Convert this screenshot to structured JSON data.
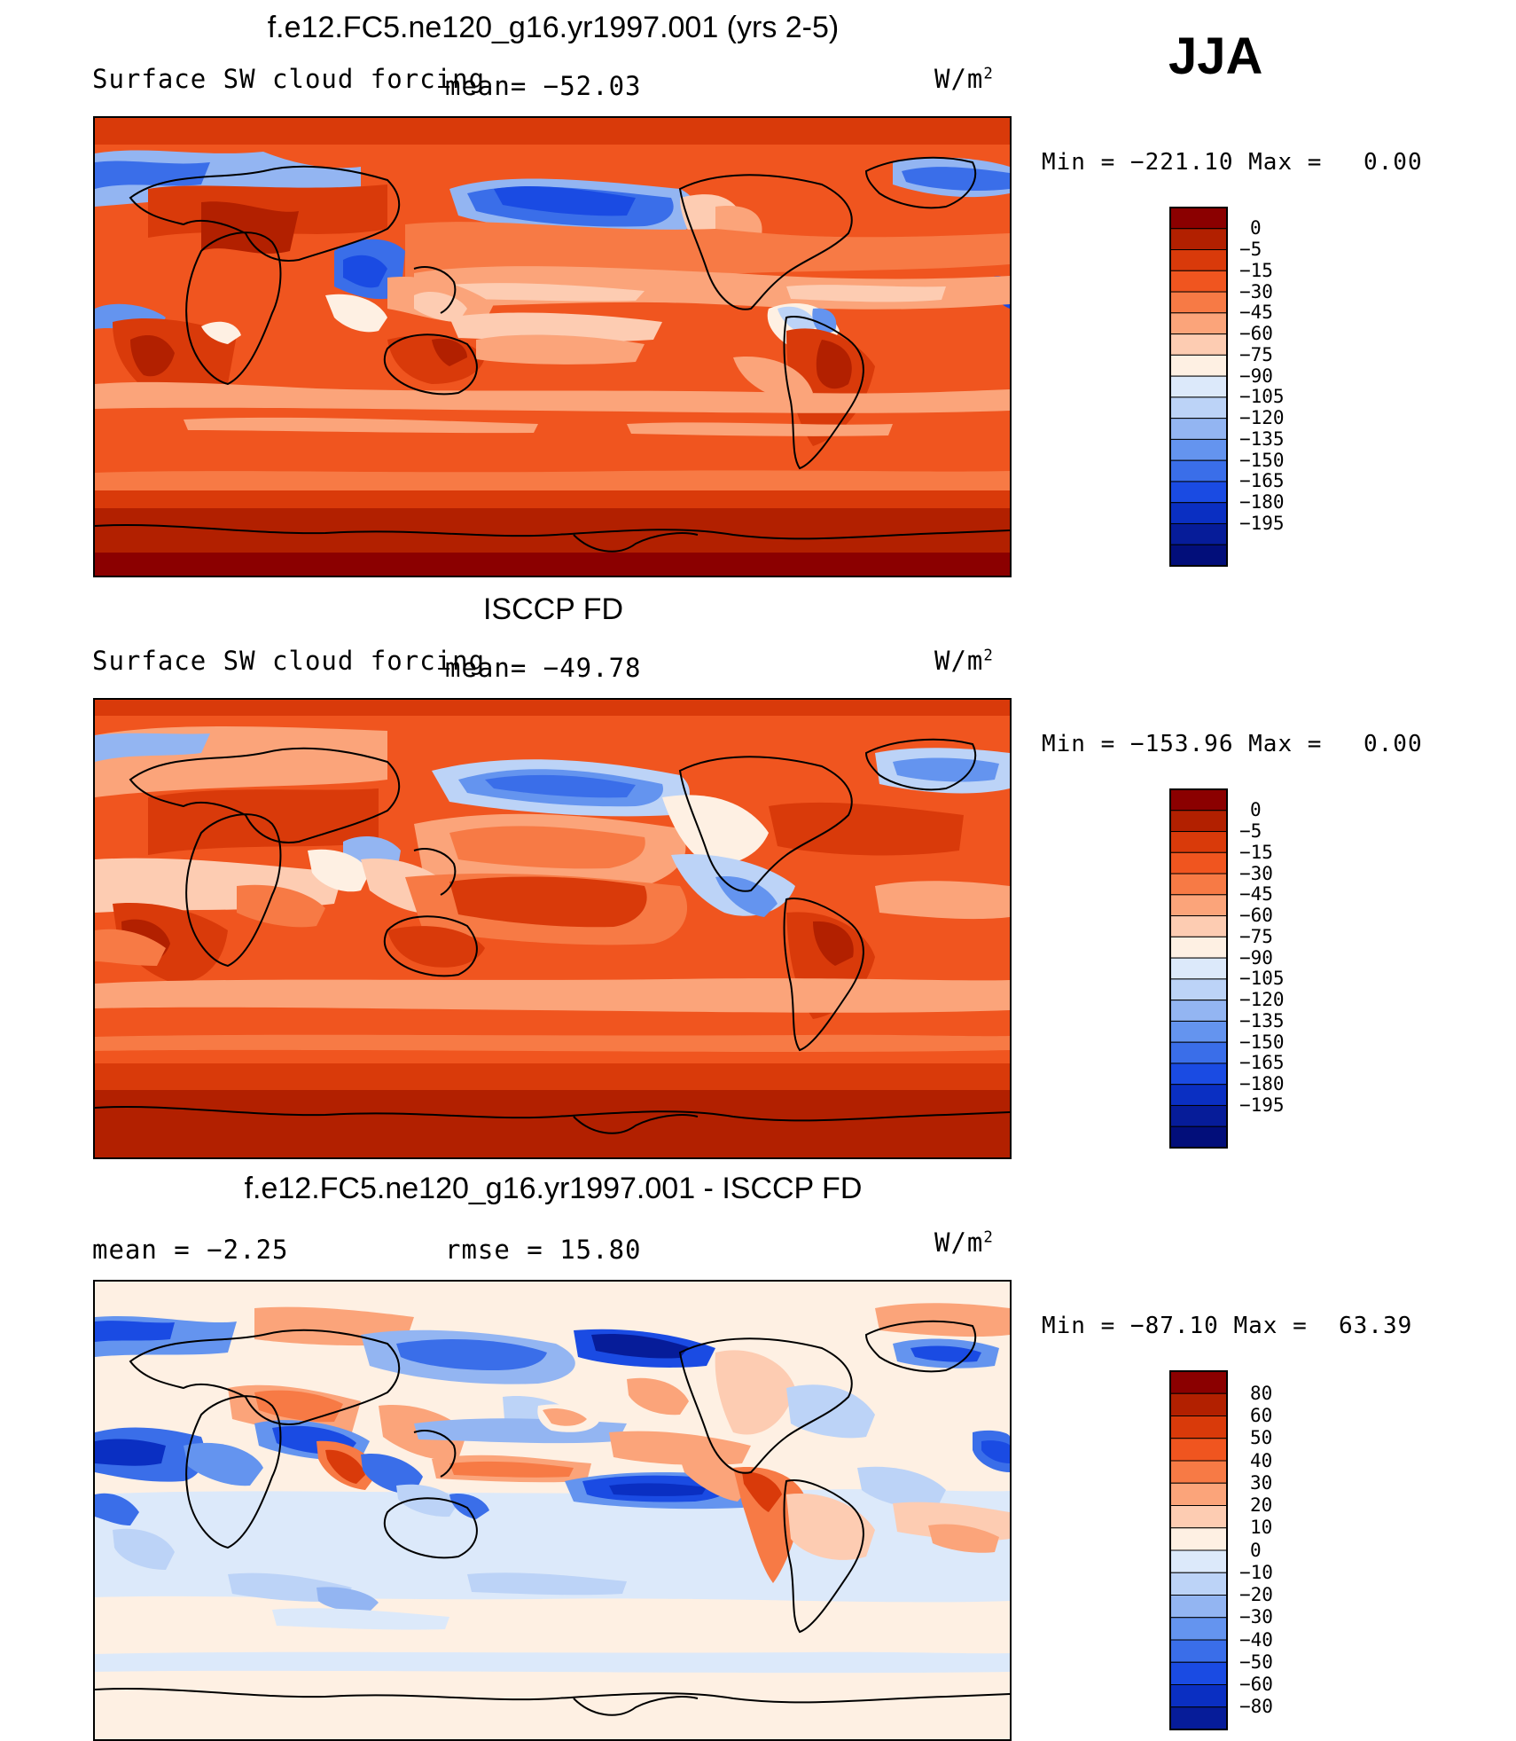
{
  "season": "JJA",
  "units_label": "W/m",
  "units_exp": "2",
  "panels": [
    {
      "title": "f.e12.FC5.ne120_g16.yr1997.001 (yrs 2-5)",
      "left_label": "Surface SW cloud forcing",
      "mean_label": "mean= −52.03",
      "min_label": "Min  =  −221.10  Max  =",
      "max_value": "0.00"
    },
    {
      "title": "ISCCP FD",
      "left_label": "Surface SW cloud forcing",
      "mean_label": "mean= −49.78",
      "min_label": "Min  =  −153.96  Max  =",
      "max_value": "0.00"
    },
    {
      "title": "f.e12.FC5.ne120_g16.yr1997.001 - ISCCP FD",
      "mean_label": "mean  =    −2.25",
      "rmse_label": "rmse  =    15.80",
      "min_label": "Min  =  −87.10  Max  =",
      "max_value": "63.39"
    }
  ],
  "colorbars": {
    "abs": {
      "colors": [
        "#8b0000",
        "#b22000",
        "#d93a0a",
        "#f0551f",
        "#f77a45",
        "#fba47a",
        "#fdccb2",
        "#fef0e3",
        "#dce9fa",
        "#bcd3f7",
        "#93b5f2",
        "#6494ef",
        "#3a6ee9",
        "#1a4be3",
        "#0a2fc2",
        "#061c99",
        "#020e7a"
      ],
      "labels": [
        "0",
        "−5",
        "−15",
        "−30",
        "−45",
        "−60",
        "−75",
        "−90",
        "−105",
        "−120",
        "−135",
        "−150",
        "−165",
        "−180",
        "−195"
      ]
    },
    "diff": {
      "colors": [
        "#8b0000",
        "#b22000",
        "#d93a0a",
        "#f0551f",
        "#f77a45",
        "#fba47a",
        "#fdccb2",
        "#fef0e3",
        "#dce9fa",
        "#bcd3f7",
        "#93b5f2",
        "#6494ef",
        "#3a6ee9",
        "#1a4be3",
        "#0a2fc2",
        "#061c99"
      ],
      "labels": [
        "80",
        "60",
        "50",
        "40",
        "30",
        "20",
        "10",
        "0",
        "−10",
        "−20",
        "−30",
        "−40",
        "−50",
        "−60",
        "−80"
      ]
    }
  },
  "chart_data": [
    {
      "type": "heatmap",
      "title": "f.e12.FC5.ne120_g16.yr1997.001 (yrs 2-5)",
      "variable": "Surface SW cloud forcing",
      "units": "W/m2",
      "season": "JJA",
      "mean": -52.03,
      "min": -221.1,
      "max": 0.0,
      "contour_levels": [
        0,
        -5,
        -15,
        -30,
        -45,
        -60,
        -75,
        -90,
        -105,
        -120,
        -135,
        -150,
        -165,
        -180,
        -195
      ]
    },
    {
      "type": "heatmap",
      "title": "ISCCP FD",
      "variable": "Surface SW cloud forcing",
      "units": "W/m2",
      "season": "JJA",
      "mean": -49.78,
      "min": -153.96,
      "max": 0.0,
      "contour_levels": [
        0,
        -5,
        -15,
        -30,
        -45,
        -60,
        -75,
        -90,
        -105,
        -120,
        -135,
        -150,
        -165,
        -180,
        -195
      ]
    },
    {
      "type": "heatmap",
      "title": "f.e12.FC5.ne120_g16.yr1997.001 - ISCCP FD",
      "units": "W/m2",
      "season": "JJA",
      "mean": -2.25,
      "rmse": 15.8,
      "min": -87.1,
      "max": 63.39,
      "contour_levels": [
        80,
        60,
        50,
        40,
        30,
        20,
        10,
        0,
        -10,
        -20,
        -30,
        -40,
        -50,
        -60,
        -80
      ]
    }
  ]
}
